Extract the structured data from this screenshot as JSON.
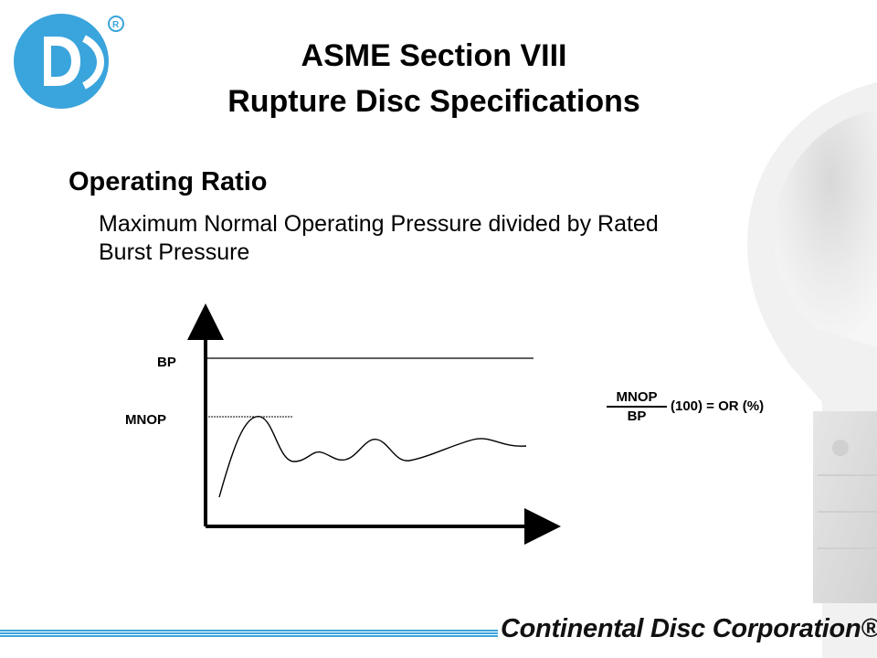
{
  "title": {
    "line1": "ASME Section VIII",
    "line2": "Rupture Disc Specifications"
  },
  "section": {
    "heading": "Operating Ratio",
    "body_line1": "Maximum Normal Operating Pressure divided by Rated",
    "body_line2": "Burst Pressure"
  },
  "diagram": {
    "bp_label": "BP",
    "mnop_label": "MNOP"
  },
  "formula": {
    "numerator": "MNOP",
    "denominator": "BP",
    "tail": "(100) = OR (%)"
  },
  "footer": {
    "company": "Continental Disc Corporation®"
  },
  "colors": {
    "brand_blue": "#3aa4dc",
    "text": "#000000"
  },
  "icons": {
    "logo": "cdc-logo-icon",
    "background": "rupture-disc-icon"
  }
}
